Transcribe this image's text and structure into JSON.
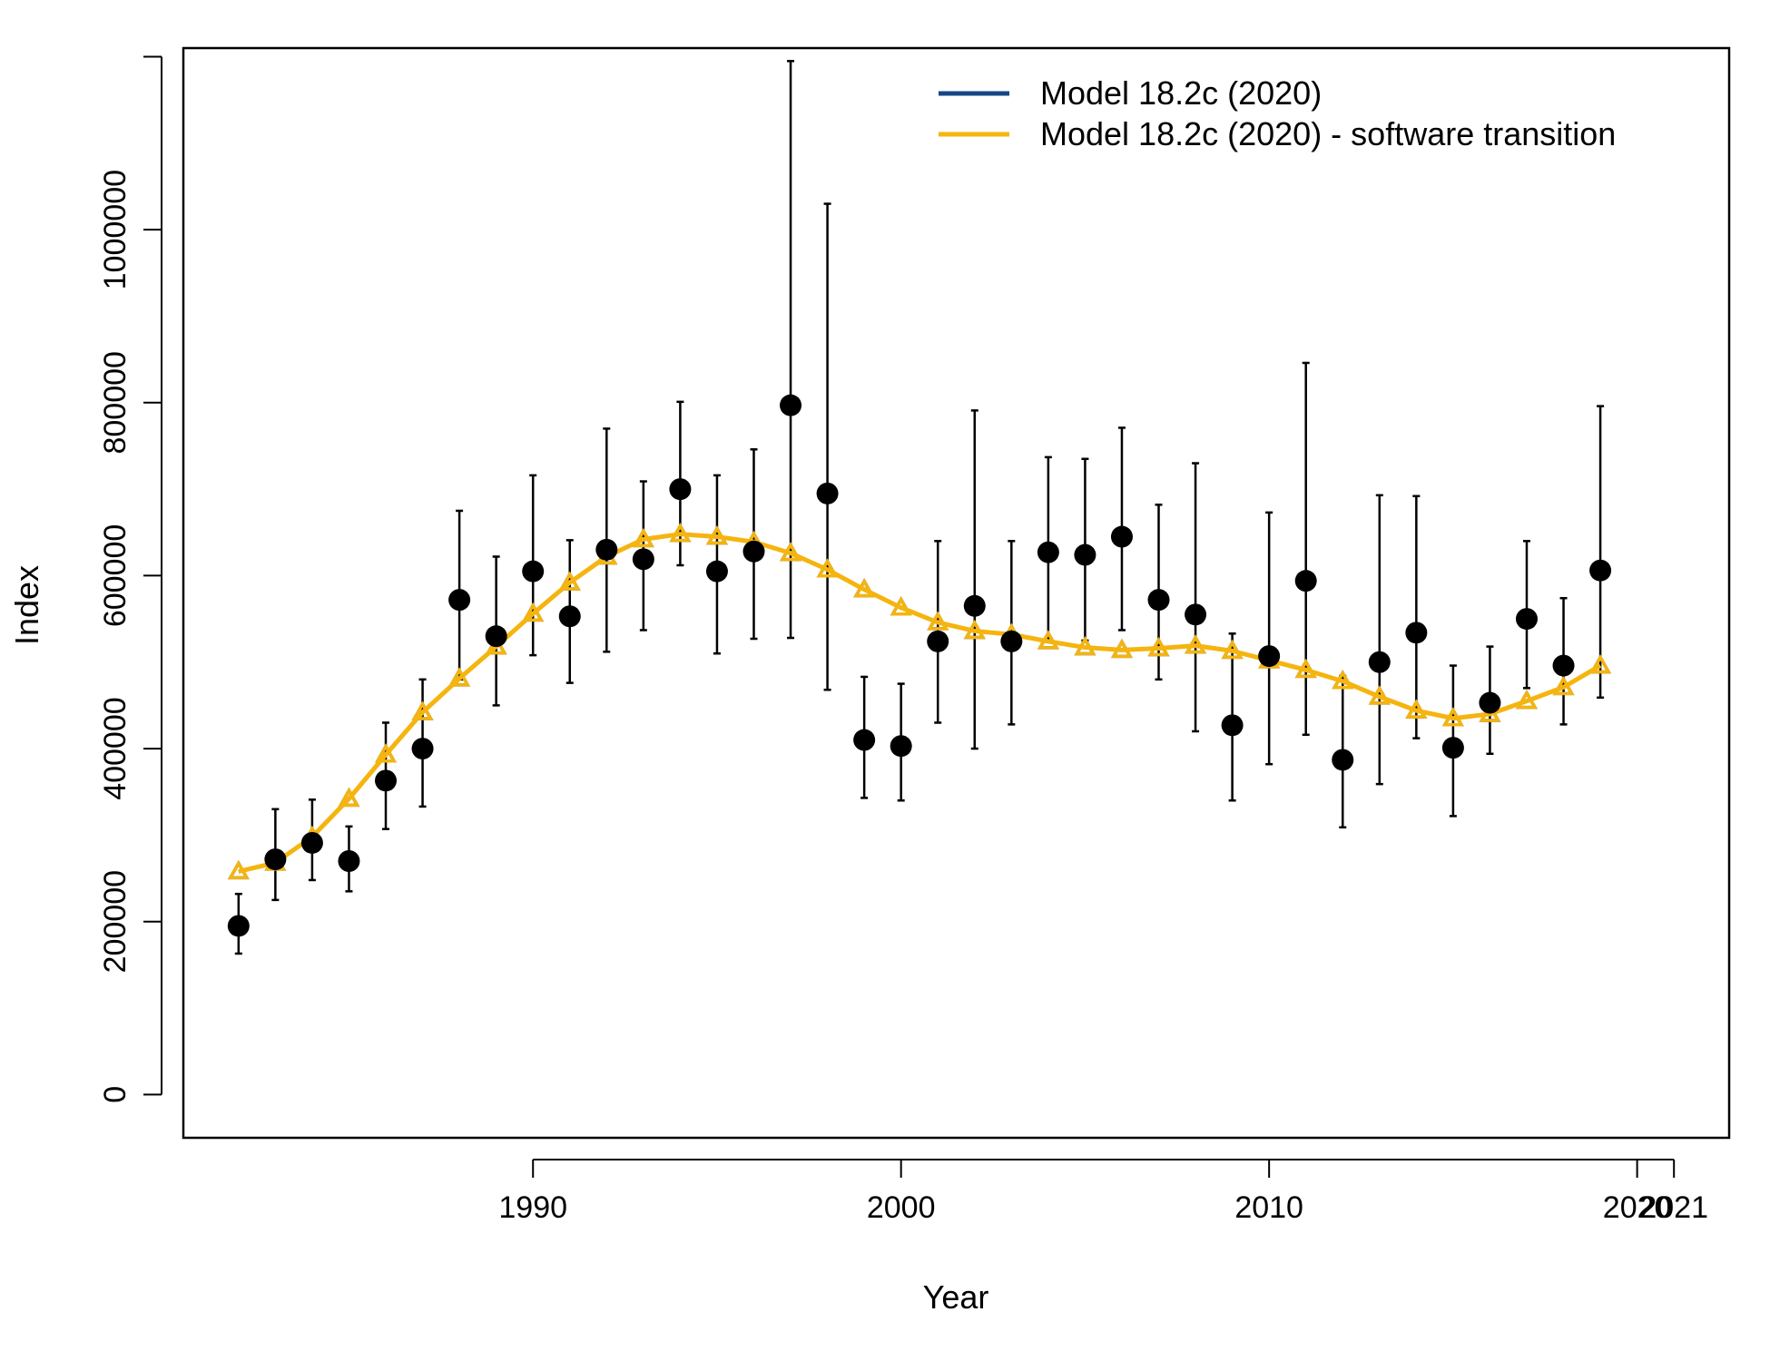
{
  "chart_data": {
    "type": "scatter",
    "xlabel": "Year",
    "ylabel": "Index",
    "xlim": [
      1980.5,
      2022.5
    ],
    "ylim": [
      -50000,
      1210000
    ],
    "x_ticks": [
      {
        "value": 1990,
        "label": "1990"
      },
      {
        "value": 2000,
        "label": "2000"
      },
      {
        "value": 2010,
        "label": "2010"
      },
      {
        "value": 2020,
        "label": "2020"
      },
      {
        "value": 2021,
        "label": "2021"
      }
    ],
    "y_ticks": [
      {
        "value": 0,
        "label": "0"
      },
      {
        "value": 200000,
        "label": "200000"
      },
      {
        "value": 400000,
        "label": "400000"
      },
      {
        "value": 600000,
        "label": "600000"
      },
      {
        "value": 800000,
        "label": "800000"
      },
      {
        "value": 1000000,
        "label": "1000000"
      },
      {
        "value": 1200000,
        "label": ""
      }
    ],
    "legend_position": "top-right",
    "observed": {
      "x": [
        1982,
        1983,
        1984,
        1985,
        1986,
        1987,
        1988,
        1989,
        1990,
        1991,
        1992,
        1993,
        1994,
        1995,
        1996,
        1997,
        1998,
        1999,
        2000,
        2001,
        2002,
        2003,
        2004,
        2005,
        2006,
        2007,
        2008,
        2009,
        2010,
        2011,
        2012,
        2013,
        2014,
        2015,
        2016,
        2017,
        2018,
        2019
      ],
      "y": [
        195000,
        272000,
        291000,
        270000,
        363000,
        400000,
        572000,
        530000,
        605000,
        553000,
        630000,
        619000,
        700000,
        605000,
        628000,
        797000,
        695000,
        410000,
        403000,
        524000,
        565000,
        524000,
        627000,
        624000,
        645000,
        572000,
        555000,
        427000,
        507000,
        594000,
        387000,
        500000,
        534000,
        401000,
        453000,
        550000,
        496000,
        606000
      ],
      "lower": [
        163000,
        225000,
        248000,
        235000,
        307000,
        333000,
        480000,
        450000,
        508000,
        476000,
        512000,
        537000,
        612000,
        510000,
        527000,
        528000,
        468000,
        343000,
        340000,
        430000,
        400000,
        428000,
        524000,
        525000,
        537000,
        480000,
        420000,
        340000,
        382000,
        416000,
        309000,
        359000,
        412000,
        322000,
        394000,
        470000,
        428000,
        459000
      ],
      "upper": [
        232000,
        330000,
        341000,
        310000,
        430000,
        480000,
        675000,
        622000,
        716000,
        641000,
        770000,
        709000,
        801000,
        716000,
        746000,
        1195000,
        1030000,
        483000,
        475000,
        640000,
        791000,
        640000,
        737000,
        735000,
        771000,
        682000,
        730000,
        533000,
        673000,
        846000,
        484000,
        693000,
        692000,
        496000,
        518000,
        640000,
        574000,
        796000
      ]
    },
    "series": [
      {
        "name": "Model 18.2c (2020)",
        "color": "#154785",
        "x": [
          1982,
          1983,
          1984,
          1985,
          1986,
          1987,
          1988,
          1989,
          1990,
          1991,
          1992,
          1993,
          1994,
          1995,
          1996,
          1997,
          1998,
          1999,
          2000,
          2001,
          2002,
          2003,
          2004,
          2005,
          2006,
          2007,
          2008,
          2009,
          2010,
          2011,
          2012,
          2013,
          2014,
          2015,
          2016,
          2017,
          2018,
          2019
        ],
        "values": [
          258000,
          268000,
          298000,
          342000,
          393000,
          442000,
          481000,
          518000,
          556000,
          592000,
          622000,
          642000,
          648000,
          645000,
          639000,
          626000,
          607000,
          584000,
          563000,
          546000,
          536000,
          532000,
          524000,
          517000,
          514000,
          516000,
          519000,
          513000,
          502000,
          491000,
          478000,
          460000,
          444000,
          435000,
          440000,
          455000,
          471000,
          496000
        ]
      },
      {
        "name": "Model 18.2c (2020) - software transition",
        "color": "#F5B40E",
        "x": [
          1982,
          1983,
          1984,
          1985,
          1986,
          1987,
          1988,
          1989,
          1990,
          1991,
          1992,
          1993,
          1994,
          1995,
          1996,
          1997,
          1998,
          1999,
          2000,
          2001,
          2002,
          2003,
          2004,
          2005,
          2006,
          2007,
          2008,
          2009,
          2010,
          2011,
          2012,
          2013,
          2014,
          2015,
          2016,
          2017,
          2018,
          2019
        ],
        "values": [
          258000,
          268000,
          298000,
          342000,
          393000,
          442000,
          481000,
          518000,
          556000,
          592000,
          622000,
          642000,
          648000,
          645000,
          639000,
          626000,
          607000,
          584000,
          563000,
          546000,
          536000,
          532000,
          524000,
          517000,
          514000,
          516000,
          519000,
          513000,
          502000,
          491000,
          478000,
          460000,
          444000,
          435000,
          440000,
          455000,
          471000,
          496000
        ]
      }
    ]
  }
}
